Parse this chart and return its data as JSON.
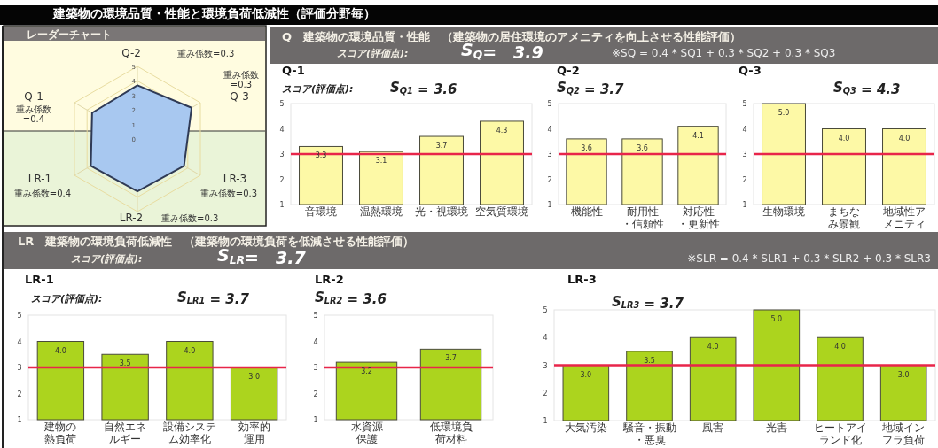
{
  "chart_data": [
    {
      "type": "radar",
      "title": "建築物の環境品質・性能と環境負荷低減性（評価分野毎）",
      "subtitle": "レーダーチャート",
      "categories": [
        "Q-2",
        "Q-3",
        "LR-3",
        "LR-2",
        "LR-1",
        "Q-1"
      ],
      "series": [
        {
          "color": "#a8c8f0",
          "values": [
            3.7,
            4.3,
            3.7,
            3.6,
            3.7,
            3.6
          ]
        }
      ],
      "ylim": [
        0,
        5
      ],
      "yticks": [
        0,
        1,
        2,
        3,
        4,
        5
      ],
      "annotations": [
        "重み係数=0.3",
        "重み係数=0.3",
        "重み係数=0.3",
        "重み係数=0.3",
        "重み係数=0.4",
        "重み係数=0.4"
      ]
    },
    {
      "type": "bar",
      "title": "Q-1",
      "categories": [
        "音環境",
        "温熱環境",
        "光・視環境",
        "空気質環境"
      ],
      "values": [
        3.3,
        3.1,
        3.7,
        4.3
      ],
      "value_labels": [
        "3.3",
        "3.1",
        "3.7",
        "4.3"
      ],
      "color": "#fdf9a6",
      "ylim": [
        1,
        5
      ],
      "yticks": [
        1,
        2,
        3,
        4,
        5
      ],
      "ref_lines": [
        {
          "axis": "y",
          "value": 3,
          "color": "#e8254a"
        }
      ],
      "annotations": [
        "Q　建築物の環境品質・性能　（建築物の居住環境のアメニティを向上させる性能評価）",
        "スコア(評価点):",
        "S$_{Q}$=　3.9",
        "※SQ = 0.4 * SQ1 + 0.3 * SQ2 + 0.3 * SQ3",
        "スコア(評価点):",
        "S$_{Q1}$ = 3.6"
      ]
    },
    {
      "type": "bar",
      "title": "Q-2",
      "categories": [
        "機能性",
        "耐用性・信頼性",
        "対応性・更新性"
      ],
      "values": [
        3.6,
        3.6,
        4.1
      ],
      "value_labels": [
        "3.6",
        "3.6",
        "4.1"
      ],
      "color": "#fdf9a6",
      "ylim": [
        1,
        5
      ],
      "yticks": [
        1,
        2,
        3,
        4,
        5
      ],
      "ref_lines": [
        {
          "axis": "y",
          "value": 3,
          "color": "#e8254a"
        }
      ],
      "annotations": [
        "S$_{Q2}$ = 3.7"
      ]
    },
    {
      "type": "bar",
      "title": "Q-3",
      "categories": [
        "生物環境",
        "まちなみ景観",
        "地域性アメニティ"
      ],
      "values": [
        5.0,
        4.0,
        4.0
      ],
      "value_labels": [
        "5.0",
        "4.0",
        "4.0"
      ],
      "color": "#fdf9a6",
      "ylim": [
        1,
        5
      ],
      "yticks": [
        1,
        2,
        3,
        4,
        5
      ],
      "ref_lines": [
        {
          "axis": "y",
          "value": 3,
          "color": "#e8254a"
        }
      ],
      "annotations": [
        "S$_{Q3}$ = 4.3"
      ]
    },
    {
      "type": "bar",
      "title": "LR-1",
      "categories": [
        "建物の熱負荷",
        "自然エネルギー",
        "設備システム効率化",
        "効率的運用"
      ],
      "values": [
        4.0,
        3.5,
        4.0,
        3.0
      ],
      "value_labels": [
        "4.0",
        "3.5",
        "4.0",
        "3.0"
      ],
      "color": "#acd41e",
      "ylim": [
        1,
        5
      ],
      "yticks": [
        1,
        2,
        3,
        4,
        5
      ],
      "ref_lines": [
        {
          "axis": "y",
          "value": 3,
          "color": "#e8254a"
        }
      ],
      "annotations": [
        "LR　建築物の環境負荷低減性　（建築物の環境負荷を低減させる性能評価）",
        "スコア(評価点):",
        "S$_{LR}$=　3.7",
        "※SLR = 0.4 * SLR1 + 0.3 * SLR2 + 0.3 * SLR3",
        "スコア(評価点):",
        "S$_{LR1}$ = 3.7"
      ]
    },
    {
      "type": "bar",
      "title": "LR-2",
      "categories": [
        "水資源保護",
        "低環境負荷材料"
      ],
      "values": [
        3.2,
        3.7
      ],
      "value_labels": [
        "3.2",
        "3.7"
      ],
      "color": "#acd41e",
      "ylim": [
        1,
        5
      ],
      "yticks": [
        1,
        2,
        3,
        4,
        5
      ],
      "ref_lines": [
        {
          "axis": "y",
          "value": 3,
          "color": "#e8254a"
        }
      ],
      "annotations": [
        "S$_{LR2}$ = 3.6"
      ]
    },
    {
      "type": "bar",
      "title": "LR-3",
      "categories": [
        "大気汚染",
        "騒音・振動・悪臭",
        "風害",
        "光害",
        "ヒートアイランド化",
        "地域インフラ負荷"
      ],
      "values": [
        3.0,
        3.5,
        4.0,
        5.0,
        4.0,
        3.0
      ],
      "value_labels": [
        "3.0",
        "3.5",
        "4.0",
        "5.0",
        "4.0",
        "3.0"
      ],
      "color": "#acd41e",
      "ylim": [
        1,
        5
      ],
      "yticks": [
        1,
        2,
        3,
        4,
        5
      ],
      "ref_lines": [
        {
          "axis": "y",
          "value": 3,
          "color": "#e8254a"
        }
      ],
      "annotations": [
        "S$_{LR3}$ = 3.7"
      ]
    }
  ]
}
